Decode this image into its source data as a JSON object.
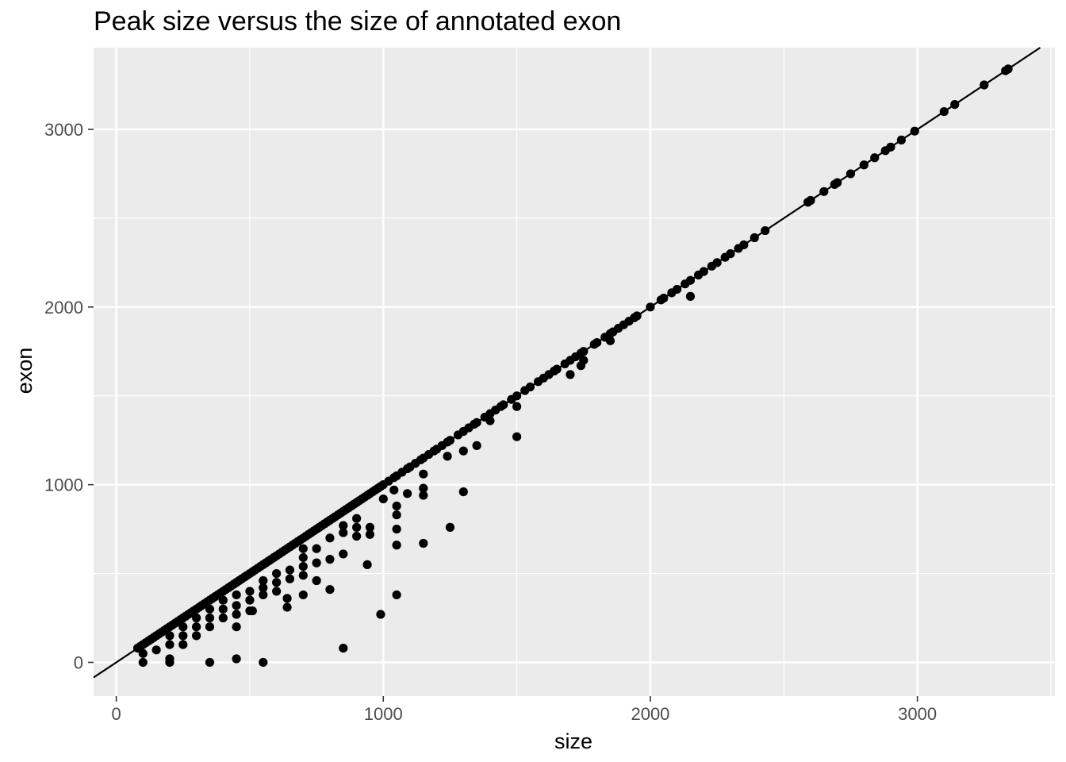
{
  "chart_data": {
    "type": "scatter",
    "title": "Peak size versus the size of annotated exon",
    "xlabel": "size",
    "ylabel": "exon",
    "xlim": [
      -85,
      3515
    ],
    "ylim": [
      -190,
      3460
    ],
    "x_ticks": [
      0,
      1000,
      2000,
      3000
    ],
    "y_ticks": [
      0,
      1000,
      2000,
      3000
    ],
    "x_tick_labels": [
      "0",
      "1000",
      "2000",
      "3000"
    ],
    "y_tick_labels": [
      "0",
      "1000",
      "2000",
      "3000"
    ],
    "grid": true,
    "background": "#EBEBEB",
    "point_color": "#000000",
    "reference_line": {
      "type": "identity",
      "slope": 1,
      "intercept": 0
    },
    "diagonal_points_x": [
      80,
      90,
      100,
      110,
      120,
      130,
      140,
      150,
      160,
      170,
      180,
      190,
      200,
      210,
      220,
      230,
      240,
      250,
      260,
      270,
      280,
      290,
      300,
      310,
      320,
      330,
      340,
      350,
      360,
      370,
      380,
      390,
      400,
      410,
      420,
      430,
      440,
      450,
      460,
      470,
      480,
      490,
      500,
      510,
      520,
      530,
      540,
      550,
      560,
      570,
      580,
      590,
      600,
      610,
      620,
      630,
      640,
      650,
      660,
      670,
      680,
      690,
      700,
      710,
      720,
      730,
      740,
      750,
      760,
      770,
      780,
      790,
      800,
      810,
      820,
      830,
      840,
      850,
      860,
      870,
      880,
      890,
      900,
      910,
      920,
      930,
      940,
      950,
      960,
      970,
      980,
      990,
      1000,
      1020,
      1040,
      1050,
      1070,
      1090,
      1100,
      1120,
      1140,
      1150,
      1170,
      1190,
      1200,
      1220,
      1240,
      1250,
      1280,
      1300,
      1320,
      1340,
      1350,
      1380,
      1400,
      1420,
      1440,
      1450,
      1480,
      1500,
      1530,
      1550,
      1580,
      1600,
      1620,
      1640,
      1650,
      1680,
      1700,
      1720,
      1740,
      1750,
      1790,
      1800,
      1830,
      1850,
      1860,
      1880,
      1900,
      1920,
      1940,
      1950,
      2000,
      2040,
      2050,
      2080,
      2100,
      2130,
      2150,
      2180,
      2200,
      2230,
      2250,
      2280,
      2300,
      2330,
      2350,
      2390,
      2430,
      2590,
      2600,
      2650,
      2690,
      2700,
      2750,
      2800,
      2840,
      2880,
      2900,
      2940,
      2990,
      3100,
      3140,
      3250,
      3330,
      3340
    ],
    "off_diagonal_points": [
      {
        "x": 100,
        "y": 0
      },
      {
        "x": 100,
        "y": 50
      },
      {
        "x": 150,
        "y": 70
      },
      {
        "x": 200,
        "y": 0
      },
      {
        "x": 200,
        "y": 20
      },
      {
        "x": 200,
        "y": 100
      },
      {
        "x": 200,
        "y": 150
      },
      {
        "x": 250,
        "y": 100
      },
      {
        "x": 250,
        "y": 150
      },
      {
        "x": 250,
        "y": 200
      },
      {
        "x": 300,
        "y": 150
      },
      {
        "x": 300,
        "y": 200
      },
      {
        "x": 300,
        "y": 250
      },
      {
        "x": 350,
        "y": 0
      },
      {
        "x": 350,
        "y": 200
      },
      {
        "x": 350,
        "y": 250
      },
      {
        "x": 350,
        "y": 300
      },
      {
        "x": 400,
        "y": 250
      },
      {
        "x": 400,
        "y": 300
      },
      {
        "x": 400,
        "y": 350
      },
      {
        "x": 450,
        "y": 20
      },
      {
        "x": 450,
        "y": 200
      },
      {
        "x": 450,
        "y": 270
      },
      {
        "x": 450,
        "y": 320
      },
      {
        "x": 450,
        "y": 380
      },
      {
        "x": 500,
        "y": 290
      },
      {
        "x": 500,
        "y": 350
      },
      {
        "x": 500,
        "y": 400
      },
      {
        "x": 510,
        "y": 290
      },
      {
        "x": 550,
        "y": 0
      },
      {
        "x": 550,
        "y": 380
      },
      {
        "x": 550,
        "y": 420
      },
      {
        "x": 550,
        "y": 460
      },
      {
        "x": 600,
        "y": 400
      },
      {
        "x": 600,
        "y": 450
      },
      {
        "x": 600,
        "y": 500
      },
      {
        "x": 640,
        "y": 310
      },
      {
        "x": 640,
        "y": 360
      },
      {
        "x": 650,
        "y": 470
      },
      {
        "x": 650,
        "y": 520
      },
      {
        "x": 700,
        "y": 380
      },
      {
        "x": 700,
        "y": 490
      },
      {
        "x": 700,
        "y": 540
      },
      {
        "x": 700,
        "y": 590
      },
      {
        "x": 700,
        "y": 640
      },
      {
        "x": 750,
        "y": 460
      },
      {
        "x": 750,
        "y": 560
      },
      {
        "x": 750,
        "y": 640
      },
      {
        "x": 800,
        "y": 410
      },
      {
        "x": 800,
        "y": 580
      },
      {
        "x": 800,
        "y": 700
      },
      {
        "x": 850,
        "y": 80
      },
      {
        "x": 850,
        "y": 610
      },
      {
        "x": 850,
        "y": 730
      },
      {
        "x": 850,
        "y": 770
      },
      {
        "x": 900,
        "y": 710
      },
      {
        "x": 900,
        "y": 760
      },
      {
        "x": 900,
        "y": 810
      },
      {
        "x": 940,
        "y": 550
      },
      {
        "x": 950,
        "y": 720
      },
      {
        "x": 950,
        "y": 760
      },
      {
        "x": 990,
        "y": 270
      },
      {
        "x": 1000,
        "y": 920
      },
      {
        "x": 1050,
        "y": 380
      },
      {
        "x": 1050,
        "y": 660
      },
      {
        "x": 1050,
        "y": 750
      },
      {
        "x": 1050,
        "y": 830
      },
      {
        "x": 1050,
        "y": 880
      },
      {
        "x": 1040,
        "y": 970
      },
      {
        "x": 1090,
        "y": 950
      },
      {
        "x": 1150,
        "y": 670
      },
      {
        "x": 1150,
        "y": 940
      },
      {
        "x": 1150,
        "y": 980
      },
      {
        "x": 1150,
        "y": 1060
      },
      {
        "x": 1250,
        "y": 760
      },
      {
        "x": 1240,
        "y": 1160
      },
      {
        "x": 1300,
        "y": 960
      },
      {
        "x": 1300,
        "y": 1190
      },
      {
        "x": 1350,
        "y": 1220
      },
      {
        "x": 1400,
        "y": 1360
      },
      {
        "x": 1500,
        "y": 1270
      },
      {
        "x": 1500,
        "y": 1440
      },
      {
        "x": 1700,
        "y": 1620
      },
      {
        "x": 1740,
        "y": 1670
      },
      {
        "x": 1750,
        "y": 1700
      },
      {
        "x": 1850,
        "y": 1810
      },
      {
        "x": 2150,
        "y": 2060
      }
    ]
  }
}
